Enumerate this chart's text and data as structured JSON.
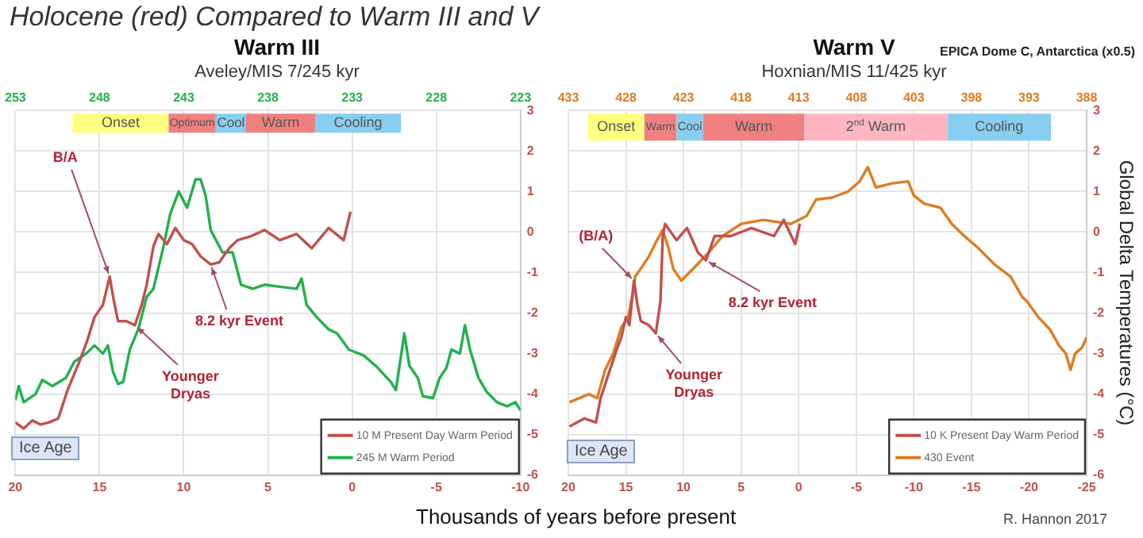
{
  "chart_data": [
    {
      "type": "line",
      "title": "Warm III",
      "subtitle": "Aveley/MIS 7/245 kyr",
      "xlim": [
        20,
        -10
      ],
      "xticks": [
        20,
        15,
        10,
        5,
        0,
        -5,
        -10
      ],
      "x2lim": [
        253,
        223
      ],
      "x2ticks": [
        253,
        248,
        243,
        238,
        233,
        228,
        223
      ],
      "ylim": [
        -6,
        3
      ],
      "yticks": [
        -6,
        -5,
        -4,
        -3,
        -2,
        -1,
        0,
        1,
        2,
        3
      ],
      "grid": true,
      "legend": "bottom right",
      "marker": "none",
      "series": [
        {
          "name": "10 M Present Day Warm Period",
          "color": "#c0504d",
          "x": [
            20,
            19.5,
            19,
            18.5,
            18,
            17.45,
            16.9,
            16.2,
            15.75,
            15.3,
            14.8,
            14.4,
            14.15,
            13.9,
            13.4,
            12.9,
            12.5,
            12.2,
            11.8,
            11.5,
            11,
            10.5,
            10,
            9.5,
            9,
            8.4,
            7.9,
            7.3,
            6.8,
            6,
            5.2,
            4.3,
            3.3,
            2.4,
            1.4,
            0.5,
            0.1
          ],
          "values": [
            -4.7,
            -4.85,
            -4.65,
            -4.75,
            -4.7,
            -4.6,
            -3.9,
            -3.2,
            -2.7,
            -2.1,
            -1.8,
            -1.1,
            -1.7,
            -2.2,
            -2.2,
            -2.3,
            -1.8,
            -1.3,
            -0.35,
            -0.05,
            -0.3,
            0.1,
            -0.2,
            -0.3,
            -0.6,
            -0.8,
            -0.75,
            -0.4,
            -0.2,
            -0.1,
            0.05,
            -0.2,
            -0.05,
            -0.4,
            0.1,
            -0.2,
            0.5
          ]
        },
        {
          "name": "245 M Warm Period",
          "color": "#22b14c",
          "axis": "x2",
          "x": [
            253,
            252.8,
            252.5,
            251.8,
            251.4,
            250.8,
            250,
            249.5,
            248.8,
            248.3,
            247.8,
            247.5,
            247.2,
            246.9,
            246.6,
            246.2,
            245.7,
            245.2,
            244.8,
            244.2,
            243.8,
            243.3,
            242.8,
            242.3,
            242,
            241.7,
            241.4,
            240.7,
            240.1,
            239.6,
            238.9,
            238.2,
            237.3,
            236.3,
            236,
            235.7,
            235.1,
            234.4,
            233.9,
            233.2,
            232.3,
            231.6,
            230.7,
            230.4,
            229.9,
            229.6,
            229.1,
            228.8,
            228.2,
            227.8,
            227.4,
            227.1,
            226.6,
            226.3,
            226,
            225.5,
            225,
            224.4,
            223.8,
            223.3,
            223
          ],
          "values": [
            -4.15,
            -3.8,
            -4.2,
            -4.0,
            -3.65,
            -3.8,
            -3.6,
            -3.2,
            -3.0,
            -2.8,
            -3.0,
            -2.8,
            -3.45,
            -3.75,
            -3.7,
            -2.9,
            -2.4,
            -1.6,
            -1.4,
            -0.35,
            0.45,
            1.0,
            0.6,
            1.3,
            1.3,
            0.9,
            0.05,
            -0.5,
            -0.5,
            -1.3,
            -1.4,
            -1.3,
            -1.35,
            -1.4,
            -1.15,
            -1.8,
            -2.1,
            -2.4,
            -2.5,
            -2.9,
            -3.05,
            -3.3,
            -3.7,
            -3.9,
            -2.5,
            -3.3,
            -3.6,
            -4.05,
            -4.1,
            -3.6,
            -3.35,
            -2.9,
            -3.0,
            -2.3,
            -2.9,
            -3.6,
            -3.95,
            -4.2,
            -4.3,
            -4.2,
            -4.4
          ]
        }
      ],
      "bands": [
        {
          "axis": "x",
          "from": 16.6,
          "to": 10.9,
          "label": "Onset",
          "color": "#ffff80"
        },
        {
          "axis": "x",
          "from": 10.9,
          "to": 8.1,
          "label": "Optimum",
          "color": "#f08080"
        },
        {
          "axis": "x",
          "from": 8.1,
          "to": 6.3,
          "label": "Cool",
          "color": "#87cef0"
        },
        {
          "axis": "x",
          "from": 6.3,
          "to": 2.2,
          "label": "Warm",
          "color": "#f08080"
        },
        {
          "axis": "x",
          "from": 2.2,
          "to": -2.9,
          "label": "Cooling",
          "color": "#87cef0"
        }
      ],
      "annotations": [
        "Holocene (red) Compared to Warm III and V",
        {
          "text": "B/A",
          "x": 14.4,
          "y": -1.1
        },
        {
          "text": "8.2 kyr Event",
          "x": 8.4,
          "y": -0.8
        },
        {
          "text": "Younger Dryas",
          "x": 12.9,
          "y": -2.3
        },
        "Ice Age"
      ]
    },
    {
      "type": "line",
      "title": "Warm V",
      "subtitle": "Hoxnian/MIS 11/425 kyr",
      "ylabel": "Global Delta Temperatures (°C)",
      "xlim": [
        20,
        -25
      ],
      "xticks": [
        20,
        15,
        10,
        5,
        0,
        -5,
        -10,
        -15,
        -20,
        -25
      ],
      "x2lim": [
        433,
        388
      ],
      "x2ticks": [
        433,
        428,
        423,
        418,
        413,
        408,
        403,
        398,
        393,
        388
      ],
      "ylim": [
        -6,
        3
      ],
      "yticks": [
        -6,
        -5,
        -4,
        -3,
        -2,
        -1,
        0,
        1,
        2,
        3
      ],
      "grid": true,
      "legend": "bottom right",
      "marker": "none",
      "series": [
        {
          "name": "10 K Present Day Warm Period",
          "color": "#c0504d",
          "x": [
            19.9,
            18.6,
            17.6,
            17.2,
            16.5,
            15.8,
            15.4,
            15,
            14.7,
            14.3,
            14,
            13.7,
            13,
            12.4,
            12,
            11.8,
            11.6,
            10.6,
            9.7,
            8.75,
            8.05,
            7.3,
            5.9,
            4.1,
            2.15,
            1.3,
            0.3,
            -0.1
          ],
          "values": [
            -4.8,
            -4.6,
            -4.7,
            -4.1,
            -3.5,
            -2.9,
            -2.6,
            -2.1,
            -2.3,
            -1.2,
            -1.8,
            -2.2,
            -2.3,
            -2.5,
            -1.7,
            -0.1,
            0.2,
            -0.2,
            0.1,
            -0.5,
            -0.7,
            -0.1,
            -0.1,
            0.1,
            -0.1,
            0.3,
            -0.3,
            0.2
          ]
        },
        {
          "name": "430 Event",
          "color": "#e07b20",
          "axis": "x2",
          "x": [
            432.9,
            431.2,
            430.5,
            429.8,
            429.1,
            428.4,
            427.8,
            427.4,
            427.2,
            426.7,
            426,
            425.3,
            424.8,
            424.3,
            423.9,
            423.2,
            422.5,
            421.8,
            420.8,
            419.6,
            418,
            416.1,
            413.7,
            412.3,
            411.5,
            410.1,
            408.7,
            407.7,
            407,
            406.3,
            404.9,
            403.5,
            403,
            402.1,
            400.7,
            399.7,
            398.8,
            397.4,
            396,
            394.6,
            393.6,
            393.2,
            392.2,
            391.2,
            390.4,
            389.8,
            389.4,
            389,
            388.4,
            388
          ],
          "values": [
            -4.2,
            -4.0,
            -4.1,
            -3.4,
            -3.0,
            -2.35,
            -2.1,
            -1.5,
            -1.1,
            -0.9,
            -0.6,
            -0.2,
            0.05,
            -0.4,
            -0.9,
            -1.2,
            -1.0,
            -0.8,
            -0.5,
            -0.1,
            0.2,
            0.3,
            0.2,
            0.4,
            0.8,
            0.85,
            1.0,
            1.25,
            1.6,
            1.1,
            1.2,
            1.25,
            0.9,
            0.7,
            0.6,
            0.2,
            -0.05,
            -0.4,
            -0.8,
            -1.1,
            -1.6,
            -1.7,
            -2.1,
            -2.4,
            -2.8,
            -3.0,
            -3.4,
            -3.0,
            -2.85,
            -2.6
          ]
        }
      ],
      "bands": [
        {
          "axis": "x",
          "from": 18.3,
          "to": 13.4,
          "label": "Onset",
          "color": "#ffff80"
        },
        {
          "axis": "x",
          "from": 13.4,
          "to": 10.6,
          "label": "Warm",
          "color": "#f08080"
        },
        {
          "axis": "x",
          "from": 10.6,
          "to": 8.3,
          "label": "Cool",
          "color": "#87cef0"
        },
        {
          "axis": "x",
          "from": 8.3,
          "to": -0.5,
          "label": "Warm",
          "color": "#f08080"
        },
        {
          "axis": "x",
          "from": -0.5,
          "to": -12.9,
          "label": "2$^{nd}$ Warm",
          "color": "#ffb6c1"
        },
        {
          "axis": "x",
          "from": -12.9,
          "to": -21.9,
          "label": "Cooling",
          "color": "#87cef0"
        }
      ],
      "annotations": [
        {
          "text": "(B/A)",
          "x": 14.3,
          "y": -1.2
        },
        {
          "text": "8.2 kyr Event",
          "x": 8.05,
          "y": -0.7
        },
        {
          "text": "Younger Dryas",
          "x": 12.4,
          "y": -2.5
        },
        "Ice Age",
        "EPICA Dome C, Antarctica (x0.5)",
        "Thousands  of years before present",
        "R. Hannon 2017"
      ]
    }
  ]
}
